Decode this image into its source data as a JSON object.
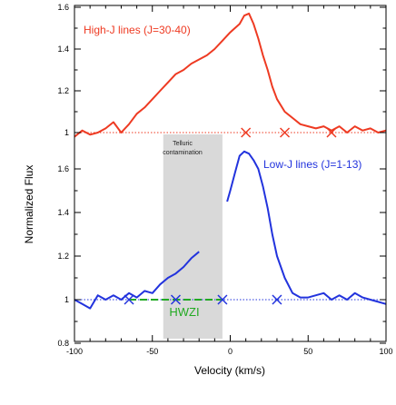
{
  "chart_data": {
    "type": "line",
    "title": "",
    "xlabel": "Velocity (km/s)",
    "ylabel": "Normalized Flux",
    "xlim": [
      -100,
      100
    ],
    "x_ticks": [
      -100,
      -50,
      0,
      50,
      100
    ],
    "upper_panel": {
      "ylim": [
        1.0,
        1.6
      ],
      "y_ticks": [
        1,
        1.2,
        1.4,
        1.6
      ],
      "continuum": 1.0,
      "series": [
        {
          "name": "High-J lines (J=30-40)",
          "color": "#ee3a22",
          "x": [
            -100,
            -95,
            -90,
            -85,
            -80,
            -75,
            -70,
            -65,
            -60,
            -55,
            -50,
            -45,
            -40,
            -35,
            -30,
            -25,
            -20,
            -15,
            -10,
            -5,
            0,
            3,
            6,
            9,
            12,
            15,
            18,
            21,
            24,
            27,
            30,
            35,
            40,
            45,
            50,
            55,
            60,
            65,
            70,
            75,
            80,
            85,
            90,
            95,
            100
          ],
          "y": [
            0.98,
            1.01,
            0.99,
            1.0,
            1.02,
            1.05,
            1.0,
            1.04,
            1.09,
            1.12,
            1.16,
            1.2,
            1.24,
            1.28,
            1.3,
            1.33,
            1.35,
            1.37,
            1.4,
            1.44,
            1.48,
            1.5,
            1.52,
            1.56,
            1.57,
            1.52,
            1.45,
            1.37,
            1.3,
            1.22,
            1.16,
            1.1,
            1.07,
            1.04,
            1.03,
            1.02,
            1.03,
            1.01,
            1.03,
            1.0,
            1.03,
            1.01,
            1.02,
            1.0,
            1.01
          ]
        }
      ],
      "markers": {
        "x": [
          10,
          35,
          65
        ],
        "color": "#ee3a22"
      },
      "annotation": "High-J lines (J=30-40)"
    },
    "lower_panel": {
      "ylim": [
        0.8,
        1.6
      ],
      "y_ticks": [
        0.8,
        1,
        1.2,
        1.4,
        1.6
      ],
      "continuum": 1.0,
      "series": [
        {
          "name": "Low-J lines (J=1-13)",
          "color": "#2233dd",
          "x": [
            -100,
            -95,
            -90,
            -85,
            -80,
            -75,
            -70,
            -65,
            -60,
            -55,
            -50,
            -45,
            -40,
            -35,
            -30,
            -25,
            -20,
            -15,
            -10,
            -5,
            -2,
            0,
            3,
            6,
            9,
            12,
            15,
            18,
            21,
            24,
            27,
            30,
            35,
            40,
            45,
            50,
            55,
            60,
            65,
            70,
            75,
            80,
            85,
            90,
            95,
            100
          ],
          "y": [
            1.0,
            0.98,
            0.96,
            1.02,
            1.0,
            1.02,
            1.0,
            1.03,
            1.01,
            1.04,
            1.03,
            1.07,
            1.1,
            1.12,
            1.15,
            1.19,
            1.22,
            null,
            null,
            null,
            1.45,
            1.5,
            1.58,
            1.66,
            1.68,
            1.67,
            1.64,
            1.6,
            1.52,
            1.42,
            1.3,
            1.2,
            1.1,
            1.03,
            1.01,
            1.01,
            1.02,
            1.03,
            1.0,
            1.02,
            1.0,
            1.03,
            1.01,
            1.0,
            0.99,
            0.98
          ]
        }
      ],
      "markers": {
        "x": [
          -65,
          -35,
          -5,
          30
        ],
        "color": "#2233dd"
      },
      "hwzi": {
        "label": "HWZI",
        "x_start": -65,
        "x_end": -5,
        "color": "#22aa22"
      },
      "annotation": "Low-J lines (J=1-13)"
    },
    "shaded_region": {
      "x_start": -43,
      "x_end": -5,
      "color": "#d9d9d9",
      "label_line1": "Telluric",
      "label_line2": "contamination"
    },
    "grid": false
  }
}
